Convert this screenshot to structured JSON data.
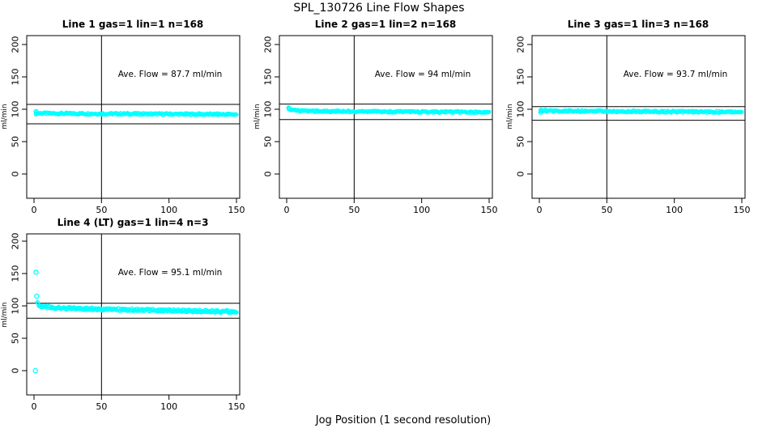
{
  "figure": {
    "title": "SPL_130726  Line Flow Shapes",
    "x_axis_label": "Jog Position (1 second resolution)",
    "accent_color": "#00FFFF",
    "axis_color": "#000000",
    "background_color": "#FFFFFF"
  },
  "chart_data": [
    {
      "type": "scatter",
      "title": "Line 1 gas=1 lin=1 n=168",
      "annotation": "Ave. Flow =  87.7  ml/min",
      "avg_flow_ml_min": 87.7,
      "n_points": 168,
      "ylabel": "ml/min",
      "x_ticks": [
        0,
        50,
        100,
        150
      ],
      "y_ticks": [
        0,
        50,
        100,
        150,
        200
      ],
      "xlim": [
        -5.4,
        152.4
      ],
      "ylim": [
        -38.75,
        212.5
      ],
      "vline_x": 50,
      "hlines": [
        107.5,
        77.5
      ],
      "marker": "open-circle",
      "band": {
        "profile": [
          [
            1.5,
            95
          ],
          [
            3,
            94
          ],
          [
            10,
            93.5
          ],
          [
            50,
            93
          ],
          [
            150,
            92
          ]
        ],
        "jitter": 1.5,
        "n": 240,
        "r": 1.9
      },
      "extra_points": [
        [
          1.5,
          96.5
        ],
        [
          1.6,
          92.5
        ]
      ]
    },
    {
      "type": "scatter",
      "title": "Line 2 gas=1 lin=2 n=168",
      "annotation": "Ave. Flow =  94  ml/min",
      "avg_flow_ml_min": 94,
      "n_points": 168,
      "ylabel": "ml/min",
      "x_ticks": [
        0,
        50,
        100,
        150
      ],
      "y_ticks": [
        0,
        50,
        100,
        150,
        200
      ],
      "xlim": [
        -5.4,
        152.4
      ],
      "ylim": [
        -38.75,
        212.5
      ],
      "vline_x": 50,
      "hlines": [
        108,
        84
      ],
      "marker": "open-circle",
      "band": {
        "profile": [
          [
            1.5,
            102
          ],
          [
            2.5,
            100
          ],
          [
            4,
            98.5
          ],
          [
            8,
            97.5
          ],
          [
            15,
            97
          ],
          [
            50,
            96.5
          ],
          [
            150,
            95.3
          ]
        ],
        "jitter": 1.4,
        "n": 240,
        "r": 1.9
      },
      "extra_points": [
        [
          1.5,
          102
        ],
        [
          1.8,
          100.5
        ]
      ]
    },
    {
      "type": "scatter",
      "title": "Line 3 gas=1 lin=3 n=168",
      "annotation": "Ave. Flow =  93.7  ml/min",
      "avg_flow_ml_min": 93.7,
      "n_points": 168,
      "ylabel": "ml/min",
      "x_ticks": [
        0,
        50,
        100,
        150
      ],
      "y_ticks": [
        0,
        50,
        100,
        150,
        200
      ],
      "xlim": [
        -5.4,
        152.4
      ],
      "ylim": [
        -38.75,
        212.5
      ],
      "vline_x": 50,
      "hlines": [
        104,
        83
      ],
      "marker": "open-circle",
      "band": {
        "profile": [
          [
            1,
            98
          ],
          [
            10,
            97.3
          ],
          [
            50,
            96.8
          ],
          [
            150,
            95.6
          ]
        ],
        "jitter": 1.5,
        "n": 240,
        "r": 1.9
      },
      "extra_points": [
        [
          1,
          95
        ],
        [
          1.2,
          98.5
        ]
      ]
    },
    {
      "type": "scatter",
      "title": "Line 4 (LT) gas=1 lin=4 n=3",
      "annotation": "Ave. Flow =  95.1  ml/min",
      "avg_flow_ml_min": 95.1,
      "n_points": 3,
      "ylabel": "ml/min",
      "x_ticks": [
        0,
        50,
        100,
        150
      ],
      "y_ticks": [
        0,
        50,
        100,
        150,
        200
      ],
      "xlim": [
        -5.4,
        152.4
      ],
      "ylim": [
        -38.75,
        212.5
      ],
      "vline_x": 50,
      "hlines": [
        104,
        81
      ],
      "marker": "open-circle",
      "band": {
        "profile": [
          [
            2.5,
            104
          ],
          [
            3.5,
            101.5
          ],
          [
            5,
            100
          ],
          [
            8,
            98.5
          ],
          [
            12,
            97.5
          ],
          [
            20,
            96.5
          ],
          [
            50,
            95
          ],
          [
            100,
            93
          ],
          [
            150,
            91
          ]
        ],
        "jitter": 1.9,
        "n": 260,
        "r": 2.1
      },
      "extra_points": [
        [
          1.5,
          152
        ],
        [
          2,
          115
        ],
        [
          1,
          0
        ]
      ]
    }
  ]
}
